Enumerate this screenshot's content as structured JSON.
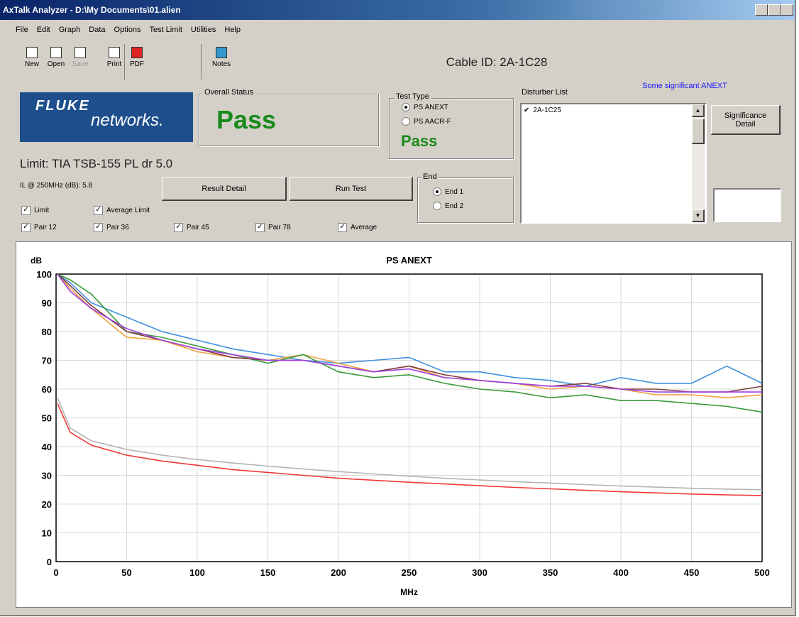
{
  "window": {
    "title": "AxTalk Analyzer - D:\\My Documents\\01.alien"
  },
  "menu": [
    "File",
    "Edit",
    "Graph",
    "Data",
    "Options",
    "Test Limit",
    "Utilities",
    "Help"
  ],
  "toolbar": [
    "New",
    "Open",
    "Save",
    "Print",
    "PDF",
    "Notes"
  ],
  "cable_id": "Cable ID: 2A-1C28",
  "logo": {
    "brand": "FLUKE",
    "sub": "networks."
  },
  "overall_status": {
    "label": "Overall Status",
    "value": "Pass"
  },
  "test_type": {
    "label": "Test Type",
    "options": [
      "PS ANEXT",
      "PS AACR-F"
    ],
    "result": "Pass"
  },
  "disturber_list": {
    "label": "Disturber List",
    "items": [
      "2A-1C25"
    ],
    "note": "Some significant ANEXT"
  },
  "significance_button": "Significance Detail",
  "limit": "Limit: TIA TSB-155 PL dr 5.0",
  "insertion_loss": "IL @ 250MHz (dB):  5.8",
  "buttons": [
    "Result Detail",
    "Run Test"
  ],
  "end": {
    "label": "End",
    "options": [
      "End 1",
      "End 2"
    ]
  },
  "chart_data": {
    "type": "line",
    "title": "PS ANEXT",
    "y_label": "dB",
    "x_label": "MHz",
    "x": [
      1,
      10,
      25,
      50,
      75,
      100,
      125,
      150,
      175,
      200,
      225,
      250,
      275,
      300,
      325,
      350,
      375,
      400,
      425,
      450,
      475,
      500
    ],
    "series": [
      {
        "name": "Pair 12",
        "color": "#3f8fe0",
        "values": [
          100,
          97,
          90,
          85,
          80,
          77,
          74,
          72,
          70,
          69,
          70,
          71,
          66,
          66,
          64,
          63,
          61,
          64,
          62,
          62,
          68,
          62
        ]
      },
      {
        "name": "Pair 36",
        "color": "#f0a040",
        "values": [
          100,
          95,
          88,
          78,
          77,
          73,
          71,
          70,
          72,
          69,
          66,
          68,
          64,
          63,
          62,
          60,
          61,
          60,
          58,
          58,
          57,
          58
        ]
      },
      {
        "name": "Pair 45",
        "color": "#3a9a3a",
        "values": [
          100,
          98,
          93,
          80,
          78,
          75,
          72,
          69,
          72,
          66,
          64,
          65,
          62,
          60,
          59,
          57,
          58,
          56,
          56,
          55,
          54,
          52
        ]
      },
      {
        "name": "Pair 78",
        "color": "#804040",
        "values": [
          100,
          96,
          89,
          80,
          77,
          74,
          71,
          70,
          70,
          68,
          66,
          68,
          65,
          63,
          62,
          61,
          62,
          60,
          60,
          59,
          59,
          61
        ]
      },
      {
        "name": "Average",
        "color": "#a040e0",
        "values": [
          100,
          94,
          88,
          81,
          77,
          74,
          72,
          70,
          70,
          68,
          66,
          67,
          64,
          63,
          62,
          61,
          61,
          60,
          59,
          59,
          59,
          59
        ]
      },
      {
        "name": "Limit",
        "color": "#f03838",
        "values": [
          55,
          45,
          40.5,
          37,
          35,
          33.5,
          32,
          31,
          30,
          29,
          28.3,
          27.6,
          27,
          26.4,
          25.8,
          25.3,
          24.8,
          24.3,
          23.9,
          23.5,
          23.2,
          23
        ]
      },
      {
        "name": "Average Limit",
        "color": "#b4b4b4",
        "values": [
          57,
          46.5,
          42,
          39,
          37,
          35.5,
          34.3,
          33.2,
          32.2,
          31.3,
          30.5,
          29.7,
          29,
          28.4,
          27.8,
          27.3,
          26.8,
          26.3,
          25.9,
          25.5,
          25.2,
          25
        ]
      }
    ],
    "xlim": [
      0,
      500
    ],
    "xticks": [
      0,
      50,
      100,
      150,
      200,
      250,
      300,
      350,
      400,
      450,
      500
    ],
    "ylim": [
      0,
      100
    ],
    "yticks": [
      0,
      10,
      20,
      30,
      40,
      50,
      60,
      70,
      80,
      90,
      100
    ],
    "grid": true
  }
}
